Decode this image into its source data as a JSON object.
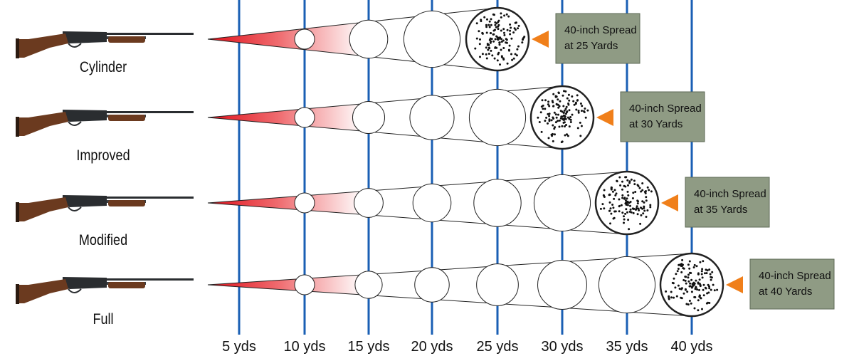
{
  "colors": {
    "yard_line": "#1a5fb4",
    "cone_red": "#e0101a",
    "callout_bg": "#8f9b84",
    "callout_border": "#5e6a56",
    "arrow": "#f07f1a",
    "stock": "#6b3a1f",
    "metal": "#2a2d30"
  },
  "yard_markers": [
    "5 yds",
    "10 yds",
    "15 yds",
    "20 yds",
    "25 yds",
    "30 yds",
    "35 yds",
    "40 yds"
  ],
  "chokes": [
    {
      "name": "Cylinder",
      "spread_line1": "40-inch Spread",
      "spread_line2": "at 25 Yards",
      "full_spread_yards": 25
    },
    {
      "name": "Improved",
      "spread_line1": "40-inch Spread",
      "spread_line2": "at 30 Yards",
      "full_spread_yards": 30
    },
    {
      "name": "Modified",
      "spread_line1": "40-inch Spread",
      "spread_line2": "at 35 Yards",
      "full_spread_yards": 35
    },
    {
      "name": "Full",
      "spread_line1": "40-inch Spread",
      "spread_line2": "at 40 Yards",
      "full_spread_yards": 40
    }
  ],
  "icons": {
    "gun": "shotgun-icon",
    "arrow": "triangle-arrow-icon"
  }
}
